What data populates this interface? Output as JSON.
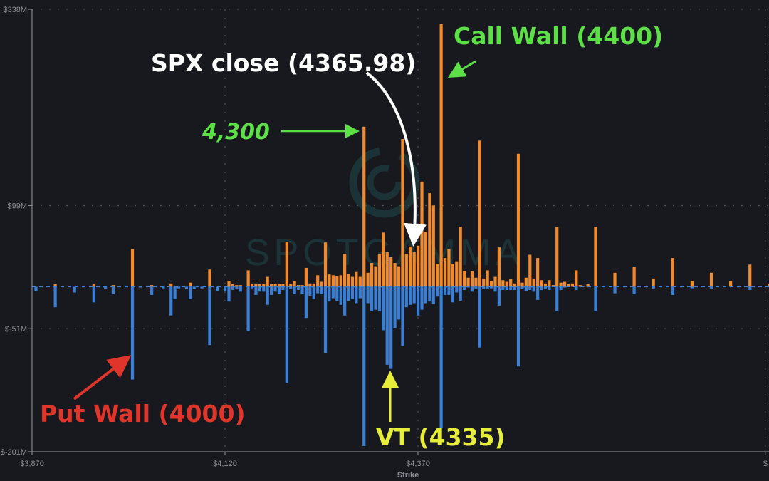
{
  "colors": {
    "background": "#17191e",
    "call": "#f08a2c",
    "put": "#3a7fd4",
    "axis": "#9a9ca2",
    "grid": "#5a5d64",
    "watermark": "#1f4a4a"
  },
  "watermark": "SPOTGAMMA",
  "annotations": {
    "call_wall": {
      "text": "Call Wall (4400)",
      "color": "#5de047"
    },
    "spx_close": {
      "text": "SPX close (4365.98)",
      "color": "#ffffff"
    },
    "level_4300": {
      "text": "4,300",
      "color": "#5de047"
    },
    "put_wall": {
      "text": "Put Wall (4000)",
      "color": "#e0352b"
    },
    "vt": {
      "text": "VT (4335)",
      "color": "#e6ee3a"
    }
  },
  "chart_data": {
    "type": "bar",
    "xlabel": "Strike",
    "ylabel": "",
    "ylim": [
      -201,
      338
    ],
    "xlim": [
      3870,
      4820
    ],
    "y_ticks": [
      {
        "value": 338,
        "label": "$338M"
      },
      {
        "value": 99,
        "label": "$99M"
      },
      {
        "value": -51,
        "label": "$-51M"
      },
      {
        "value": -201,
        "label": "$-201M"
      }
    ],
    "x_ticks": [
      {
        "value": 3870,
        "label": "$3,870"
      },
      {
        "value": 4120,
        "label": "$4,120"
      },
      {
        "value": 4370,
        "label": "$4,370"
      },
      {
        "value": 4820,
        "label": "$"
      }
    ],
    "grid": true,
    "strikes": [
      3875,
      3900,
      3925,
      3950,
      3965,
      3975,
      4000,
      4010,
      4025,
      4040,
      4050,
      4055,
      4060,
      4070,
      4075,
      4080,
      4090,
      4100,
      4110,
      4120,
      4125,
      4130,
      4135,
      4140,
      4150,
      4155,
      4160,
      4165,
      4170,
      4175,
      4180,
      4185,
      4190,
      4195,
      4200,
      4205,
      4210,
      4215,
      4220,
      4225,
      4230,
      4235,
      4240,
      4245,
      4250,
      4255,
      4260,
      4265,
      4270,
      4275,
      4280,
      4285,
      4290,
      4295,
      4300,
      4305,
      4310,
      4315,
      4320,
      4325,
      4330,
      4335,
      4340,
      4345,
      4350,
      4355,
      4360,
      4365,
      4370,
      4375,
      4380,
      4385,
      4390,
      4395,
      4400,
      4405,
      4410,
      4415,
      4420,
      4425,
      4430,
      4435,
      4440,
      4445,
      4450,
      4455,
      4460,
      4465,
      4470,
      4475,
      4480,
      4485,
      4490,
      4495,
      4500,
      4505,
      4510,
      4515,
      4520,
      4525,
      4530,
      4535,
      4540,
      4545,
      4550,
      4555,
      4560,
      4565,
      4570,
      4575,
      4580,
      4585,
      4590,
      4600,
      4625,
      4650,
      4675,
      4700,
      4725,
      4750,
      4775,
      4800,
      4825
    ],
    "series": [
      {
        "values": [
          0,
          3,
          0,
          3,
          0,
          2,
          46,
          0,
          2,
          0,
          4,
          0,
          0,
          0,
          5,
          0,
          0,
          21,
          0,
          0,
          7,
          3,
          2,
          2,
          20,
          3,
          4,
          3,
          3,
          12,
          3,
          3,
          3,
          3,
          55,
          3,
          7,
          2,
          2,
          23,
          4,
          4,
          14,
          6,
          54,
          15,
          14,
          13,
          14,
          40,
          16,
          12,
          18,
          12,
          195,
          17,
          29,
          25,
          40,
          66,
          42,
          36,
          29,
          25,
          180,
          40,
          49,
          42,
          50,
          128,
          67,
          114,
          99,
          28,
          320,
          35,
          46,
          28,
          31,
          73,
          19,
          11,
          19,
          11,
          178,
          10,
          20,
          7,
          12,
          48,
          8,
          6,
          9,
          4,
          162,
          5,
          11,
          39,
          10,
          35,
          8,
          4,
          8,
          2,
          73,
          5,
          6,
          3,
          4,
          20,
          2,
          1,
          3,
          73,
          17,
          24,
          10,
          35,
          7,
          17,
          7,
          27,
          3
        ]
      },
      {
        "values": [
          -5,
          -25,
          -7,
          -19,
          -3,
          -9,
          -113,
          -1,
          -10,
          -2,
          -35,
          -15,
          -2,
          -3,
          -15,
          -3,
          -2,
          -71,
          -5,
          -5,
          -18,
          -4,
          -3,
          -6,
          -54,
          -2,
          -10,
          -6,
          -6,
          -22,
          -10,
          -6,
          -9,
          -4,
          -117,
          -3,
          -9,
          -4,
          -9,
          -38,
          -11,
          -15,
          -8,
          -9,
          -81,
          -18,
          -14,
          -17,
          -22,
          -35,
          -17,
          -15,
          -20,
          -14,
          -194,
          -20,
          -30,
          -28,
          -30,
          -53,
          -95,
          -100,
          -50,
          -40,
          -72,
          -25,
          -22,
          -20,
          -35,
          -28,
          -20,
          -18,
          -21,
          -12,
          -172,
          -10,
          -10,
          -19,
          -7,
          -17,
          -4,
          -1,
          -6,
          -3,
          -74,
          -3,
          -3,
          -2,
          -6,
          -23,
          -4,
          -4,
          -4,
          -4,
          -97,
          -3,
          -5,
          -4,
          -6,
          -16,
          -4,
          -3,
          -4,
          0,
          -30,
          -4,
          -1,
          0,
          0,
          -4,
          0,
          0,
          0,
          -30,
          -8,
          -9,
          -3,
          -10,
          -2,
          -3,
          0,
          -4,
          0
        ]
      }
    ]
  }
}
